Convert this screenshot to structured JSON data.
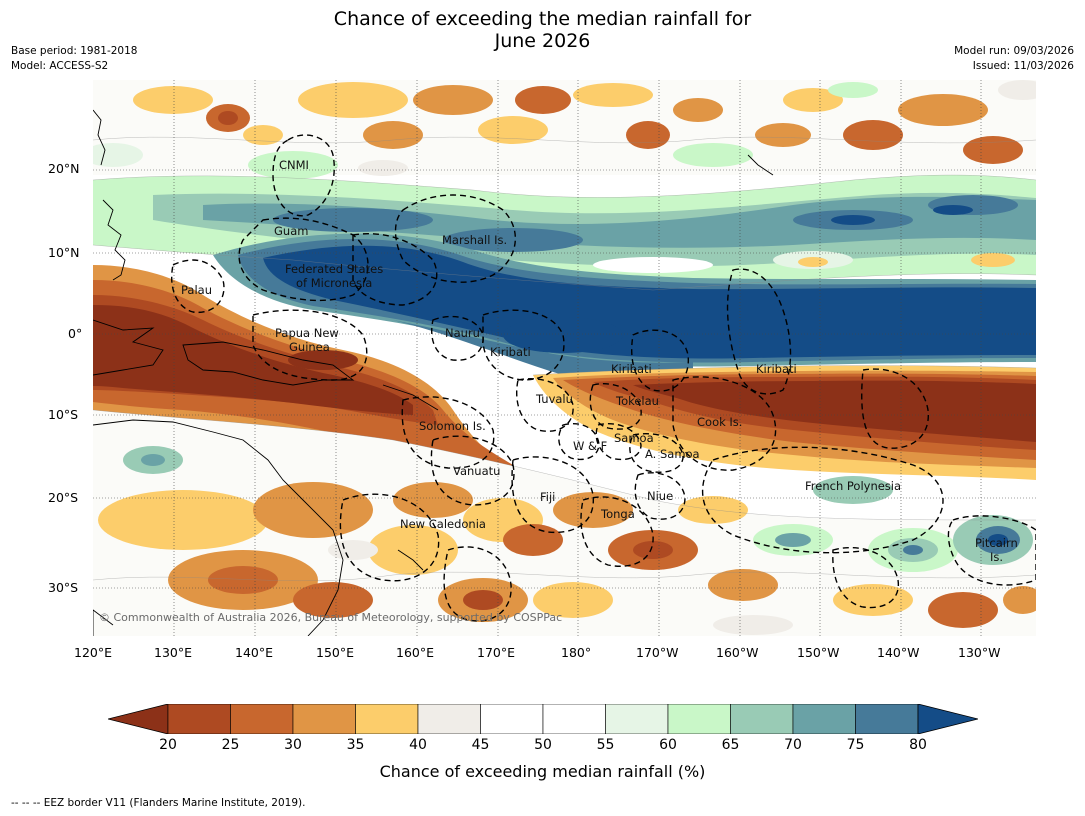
{
  "header": {
    "title_line1": "Chance of exceeding the median rainfall for",
    "title_line2": "June 2026",
    "base_period": "Base period: 1981-2018",
    "model": "Model: ACCESS-S2",
    "model_run": "Model run: 09/03/2026",
    "issued": "Issued: 11/03/2026"
  },
  "map": {
    "lat_labels": [
      "20°N",
      "10°N",
      "0°",
      "10°S",
      "20°S",
      "30°S"
    ],
    "lon_labels": [
      "120°E",
      "130°E",
      "140°E",
      "150°E",
      "160°E",
      "170°E",
      "180°",
      "170°W",
      "160°W",
      "150°W",
      "140°W",
      "130°W"
    ],
    "regions": {
      "cnmi": "CNMI",
      "guam": "Guam",
      "marshall": "Marshall Is.",
      "fsm1": "Federated States",
      "fsm2": "of Micronesia",
      "palau": "Palau",
      "png1": "Papua New",
      "png2": "Guinea",
      "nauru": "Nauru",
      "kiribati_w": "Kiribati",
      "kiribati_c": "Kiribati",
      "kiribati_e": "Kiribati",
      "tuvalu": "Tuvalu",
      "tokelau": "Tokelau",
      "cook": "Cook Is.",
      "solomon": "Solomon Is.",
      "wf": "W & F",
      "samoa": "Samoa",
      "asamoa": "A. Samoa",
      "vanuatu": "Vanuatu",
      "fiji": "Fiji",
      "niue": "Niue",
      "tonga": "Tonga",
      "frpoly": "French Polynesia",
      "newcal": "New Caledonia",
      "pitcairn1": "Pitcairn",
      "pitcairn2": "Is."
    },
    "copyright": "© Commonwealth of Australia 2026, Bureau of Meteorology, supported by COSPPac"
  },
  "colorbar": {
    "title": "Chance of exceeding median rainfall (%)",
    "ticks": [
      "20",
      "25",
      "30",
      "35",
      "40",
      "45",
      "50",
      "55",
      "60",
      "65",
      "70",
      "75",
      "80"
    ],
    "colors": {
      "under": "#8c3118",
      "bins": [
        "#ae4a22",
        "#c8672e",
        "#e09545",
        "#fccd6b",
        "#f0ede8",
        "#ffffff",
        "#ffffff",
        "#e6f5e6",
        "#c9f7c8",
        "#99cbb5",
        "#6aa2a6",
        "#467a99"
      ],
      "over": "#144c87"
    }
  },
  "footnote": "--  --  -- EEZ border V11 (Flanders Marine Institute, 2019)."
}
